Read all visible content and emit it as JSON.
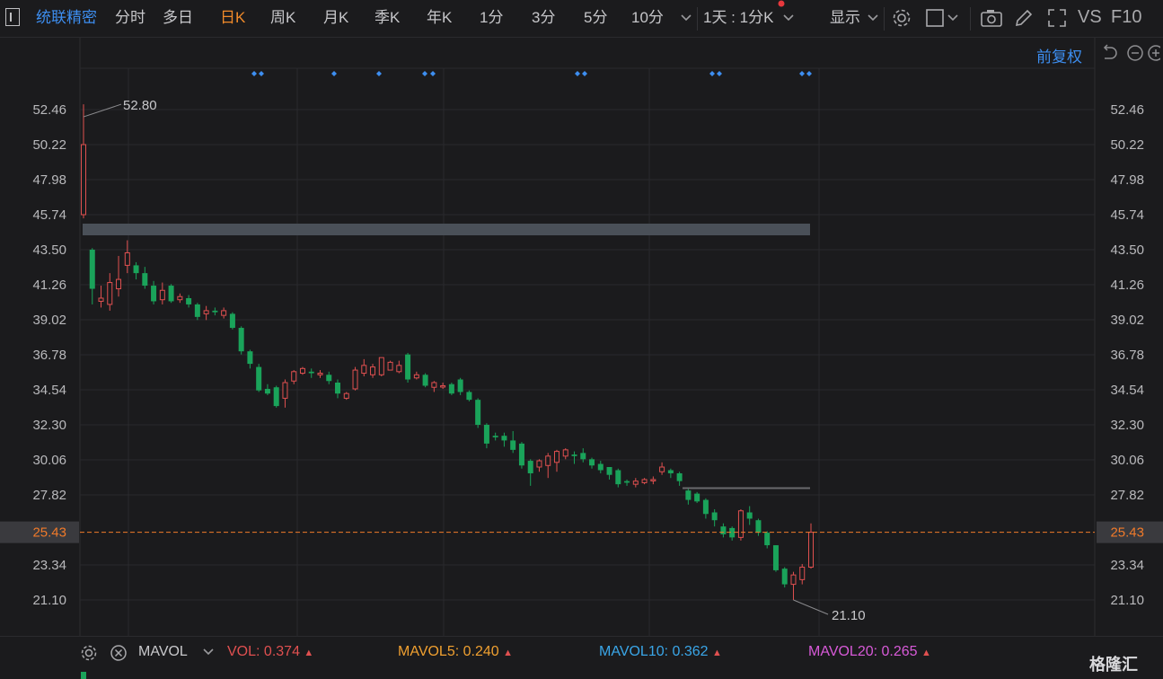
{
  "toolbar": {
    "title": "统联精密",
    "tabs": [
      "分时",
      "多日",
      "日K",
      "周K",
      "月K",
      "季K",
      "年K",
      "1分",
      "3分",
      "5分",
      "10分"
    ],
    "active_tab": "日K",
    "period_select": "1天 : 1分K",
    "display_label": "显示",
    "vs_label": "VS",
    "f10_label": "F10"
  },
  "restore_label": "前复权",
  "chart_data": {
    "type": "candlestick",
    "y_ticks": [
      "52.46",
      "50.22",
      "47.98",
      "45.74",
      "43.50",
      "41.26",
      "39.02",
      "36.78",
      "34.54",
      "32.30",
      "30.06",
      "27.82",
      "25.43",
      "23.34",
      "21.10"
    ],
    "ylim": [
      21.1,
      52.8
    ],
    "current_price": "25.43",
    "max_label": "52.80",
    "min_label": "21.10",
    "colors": {
      "up": "#e05050",
      "down": "#1aa35a",
      "current": "#f07a2a",
      "tick": "#b9b9bc",
      "grid": "#2a2a2d"
    },
    "candles": [
      [
        45.74,
        50.22,
        45.5,
        52.8
      ],
      [
        43.5,
        41.0,
        40.0,
        43.6
      ],
      [
        40.2,
        40.4,
        39.8,
        41.2
      ],
      [
        40.0,
        41.4,
        39.6,
        42.0
      ],
      [
        41.0,
        41.6,
        40.5,
        43.1
      ],
      [
        42.5,
        43.3,
        42.0,
        44.1
      ],
      [
        42.5,
        42.0,
        41.6,
        42.7
      ],
      [
        42.0,
        41.2,
        41.0,
        42.4
      ],
      [
        41.2,
        40.2,
        40.0,
        41.5
      ],
      [
        40.3,
        40.9,
        40.0,
        41.4
      ],
      [
        41.2,
        40.2,
        40.1,
        41.3
      ],
      [
        40.3,
        40.5,
        40.1,
        40.7
      ],
      [
        40.4,
        40.0,
        39.8,
        40.6
      ],
      [
        40.0,
        39.2,
        39.0,
        40.1
      ],
      [
        39.4,
        39.6,
        39.0,
        39.9
      ],
      [
        39.6,
        39.5,
        39.3,
        39.8
      ],
      [
        39.3,
        39.6,
        39.1,
        39.8
      ],
      [
        39.4,
        38.5,
        38.4,
        39.5
      ],
      [
        38.5,
        37.0,
        36.8,
        38.6
      ],
      [
        37.0,
        36.2,
        35.9,
        37.1
      ],
      [
        36.0,
        34.5,
        34.4,
        36.2
      ],
      [
        34.6,
        34.3,
        34.2,
        34.9
      ],
      [
        34.7,
        33.5,
        33.4,
        34.8
      ],
      [
        34.0,
        35.0,
        33.4,
        35.2
      ],
      [
        35.1,
        35.7,
        34.9,
        35.8
      ],
      [
        35.6,
        35.9,
        35.5,
        36.0
      ],
      [
        35.7,
        35.6,
        35.3,
        35.9
      ],
      [
        35.5,
        35.6,
        35.3,
        35.8
      ],
      [
        35.5,
        35.1,
        34.9,
        35.7
      ],
      [
        35.0,
        34.3,
        34.0,
        35.2
      ],
      [
        34.0,
        34.3,
        33.9,
        34.4
      ],
      [
        34.6,
        35.8,
        34.5,
        36.0
      ],
      [
        35.6,
        36.1,
        35.4,
        36.5
      ],
      [
        35.5,
        36.0,
        35.3,
        36.2
      ],
      [
        35.5,
        36.6,
        35.4,
        36.6
      ],
      [
        35.8,
        36.3,
        35.8,
        36.4
      ],
      [
        35.7,
        36.1,
        35.6,
        36.4
      ],
      [
        36.8,
        35.2,
        35.0,
        36.9
      ],
      [
        35.3,
        35.5,
        35.2,
        35.7
      ],
      [
        35.5,
        34.8,
        34.7,
        35.6
      ],
      [
        34.7,
        35.0,
        34.4,
        35.1
      ],
      [
        34.8,
        34.8,
        34.6,
        35.0
      ],
      [
        34.9,
        34.3,
        34.2,
        35.0
      ],
      [
        35.2,
        34.4,
        34.2,
        35.3
      ],
      [
        34.4,
        33.9,
        33.8,
        34.5
      ],
      [
        33.9,
        32.3,
        32.1,
        34.0
      ],
      [
        32.3,
        31.1,
        30.8,
        32.4
      ],
      [
        31.6,
        31.5,
        31.3,
        31.8
      ],
      [
        31.6,
        31.3,
        30.9,
        31.8
      ],
      [
        31.3,
        30.7,
        30.5,
        31.9
      ],
      [
        31.1,
        29.7,
        29.5,
        31.2
      ],
      [
        30.0,
        29.2,
        28.4,
        30.1
      ],
      [
        29.6,
        30.0,
        29.3,
        30.1
      ],
      [
        29.7,
        30.3,
        28.9,
        30.5
      ],
      [
        29.9,
        30.6,
        29.3,
        30.7
      ],
      [
        30.3,
        30.7,
        30.1,
        30.8
      ],
      [
        30.4,
        30.3,
        29.8,
        30.6
      ],
      [
        30.5,
        30.1,
        29.9,
        30.8
      ],
      [
        30.1,
        29.7,
        29.5,
        30.2
      ],
      [
        29.8,
        29.4,
        29.2,
        30.0
      ],
      [
        29.6,
        29.1,
        28.8,
        29.6
      ],
      [
        29.4,
        28.5,
        28.3,
        29.5
      ],
      [
        28.7,
        28.6,
        28.4,
        28.8
      ],
      [
        28.5,
        28.7,
        28.3,
        28.9
      ],
      [
        28.6,
        28.8,
        28.5,
        28.9
      ],
      [
        28.8,
        28.8,
        28.5,
        29.0
      ],
      [
        29.3,
        29.6,
        29.1,
        29.9
      ],
      [
        29.4,
        29.2,
        28.9,
        29.5
      ],
      [
        29.2,
        28.7,
        28.4,
        29.3
      ],
      [
        28.1,
        27.5,
        27.2,
        28.2
      ],
      [
        27.9,
        27.4,
        27.3,
        28.0
      ],
      [
        27.5,
        26.6,
        26.3,
        27.6
      ],
      [
        26.7,
        26.2,
        25.8,
        26.9
      ],
      [
        25.8,
        25.3,
        25.1,
        26.0
      ],
      [
        25.7,
        25.1,
        24.9,
        25.8
      ],
      [
        25.1,
        26.8,
        24.9,
        26.9
      ],
      [
        26.7,
        26.3,
        25.9,
        27.1
      ],
      [
        26.2,
        25.4,
        25.2,
        26.3
      ],
      [
        25.4,
        24.6,
        24.4,
        25.5
      ],
      [
        24.6,
        23.0,
        22.9,
        24.6
      ],
      [
        23.1,
        22.1,
        21.9,
        23.2
      ],
      [
        22.1,
        22.7,
        21.1,
        22.9
      ],
      [
        22.4,
        23.2,
        22.1,
        23.4
      ],
      [
        23.2,
        25.43,
        23.1,
        26.0
      ]
    ]
  },
  "indicator": {
    "name": "MAVOL",
    "vol_label": "VOL:",
    "vol_value": "0.374",
    "mavol5_label": "MAVOL5:",
    "mavol5_value": "0.240",
    "mavol10_label": "MAVOL10:",
    "mavol10_value": "0.362",
    "mavol20_label": "MAVOL20:",
    "mavol20_value": "0.265",
    "colors": {
      "vol": "#e05050",
      "mavol5": "#f0a030",
      "mavol10": "#3aa6e8",
      "mavol20": "#d85ad8"
    }
  },
  "watermark": "格隆汇"
}
